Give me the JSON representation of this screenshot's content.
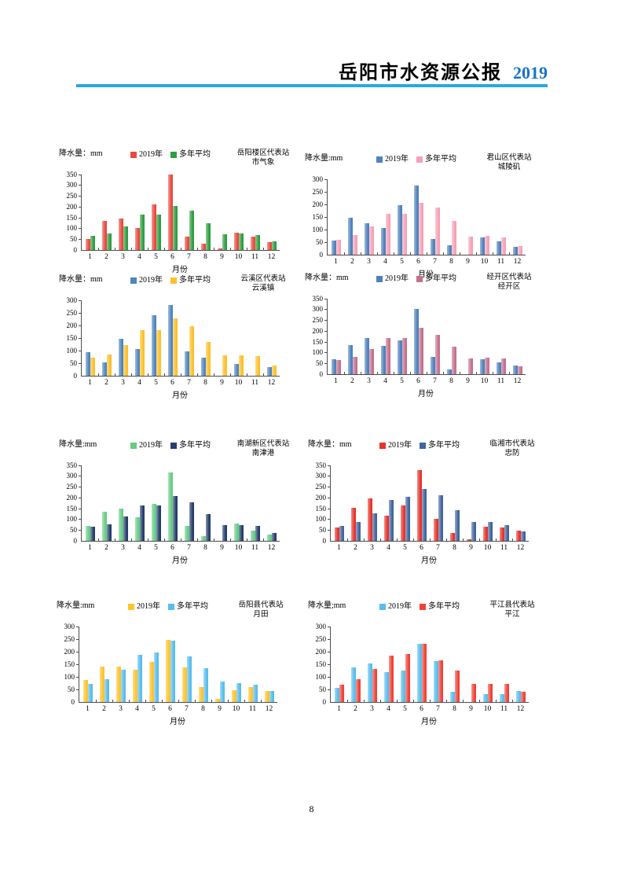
{
  "header": {
    "title": "岳阳市水资源公报",
    "year": "2019",
    "year_color": "#1573c8",
    "rule_color": "#29a7e3"
  },
  "page_number": "8",
  "chart_data": [
    {
      "type": "bar",
      "title_line1": "岳阳楼区代表站",
      "title_line2": "市气象",
      "unit_label": "降水量：mm",
      "xlabel": "月份",
      "categories": [
        "1",
        "2",
        "3",
        "4",
        "5",
        "6",
        "7",
        "8",
        "9",
        "10",
        "11",
        "12"
      ],
      "ylim": [
        0,
        350
      ],
      "ystep": 50,
      "grid": false,
      "legend_position": "top",
      "series": [
        {
          "name": "2019年",
          "color": "#e9493e",
          "values": [
            52,
            135,
            145,
            100,
            210,
            350,
            62,
            30,
            5,
            80,
            60,
            35
          ]
        },
        {
          "name": "多年平均",
          "color": "#2f9e41",
          "values": [
            63,
            77,
            110,
            165,
            165,
            205,
            180,
            123,
            72,
            75,
            70,
            40
          ]
        }
      ]
    },
    {
      "type": "bar",
      "title_line1": "君山区代表站",
      "title_line2": "城陵矶",
      "unit_label": "降水量:mm",
      "xlabel": "月份",
      "categories": [
        "1",
        "2",
        "3",
        "4",
        "5",
        "6",
        "7",
        "8",
        "9",
        "10",
        "11",
        "12"
      ],
      "ylim": [
        0,
        300
      ],
      "ystep": 50,
      "grid": false,
      "legend_position": "top",
      "series": [
        {
          "name": "2019年",
          "color": "#4f81bd",
          "values": [
            55,
            145,
            125,
            105,
            195,
            275,
            62,
            37,
            0,
            68,
            52,
            30
          ]
        },
        {
          "name": "多年平均",
          "color": "#f6a2b6",
          "values": [
            60,
            77,
            112,
            163,
            163,
            205,
            188,
            135,
            72,
            73,
            68,
            35
          ]
        }
      ]
    },
    {
      "type": "bar",
      "title_line1": "云溪区代表站",
      "title_line2": "云溪镇",
      "unit_label": "降水量：mm",
      "xlabel": "月份",
      "categories": [
        "1",
        "2",
        "3",
        "4",
        "5",
        "6",
        "7",
        "8",
        "9",
        "10",
        "11",
        "12"
      ],
      "ylim": [
        0,
        300
      ],
      "ystep": 50,
      "grid": false,
      "legend_position": "top",
      "series": [
        {
          "name": "2019年",
          "color": "#4f86be",
          "values": [
            92,
            52,
            145,
            105,
            240,
            282,
            97,
            72,
            0,
            47,
            0,
            35
          ]
        },
        {
          "name": "多年平均",
          "color": "#fdc02c",
          "values": [
            70,
            85,
            120,
            180,
            180,
            228,
            197,
            133,
            80,
            80,
            77,
            40
          ]
        }
      ]
    },
    {
      "type": "bar",
      "title_line1": "经开区代表站",
      "title_line2": "经开区",
      "unit_label": "降水量：mm",
      "xlabel": "月份",
      "categories": [
        "1",
        "2",
        "3",
        "4",
        "5",
        "6",
        "7",
        "8",
        "9",
        "10",
        "11",
        "12"
      ],
      "ylim": [
        0,
        350
      ],
      "ystep": 50,
      "grid": false,
      "legend_position": "top",
      "series": [
        {
          "name": "2019年",
          "color": "#4f81bd",
          "values": [
            68,
            133,
            168,
            132,
            155,
            302,
            78,
            20,
            0,
            68,
            55,
            40
          ]
        },
        {
          "name": "多年平均",
          "color": "#c4718c",
          "values": [
            63,
            79,
            114,
            168,
            168,
            213,
            183,
            126,
            72,
            74,
            72,
            36
          ]
        }
      ]
    },
    {
      "type": "bar",
      "title_line1": "南湖新区代表站",
      "title_line2": "南津港",
      "unit_label": "降水量:mm",
      "xlabel": "月份",
      "categories": [
        "1",
        "2",
        "3",
        "4",
        "5",
        "6",
        "7",
        "8",
        "9",
        "10",
        "11",
        "12"
      ],
      "ylim": [
        0,
        350
      ],
      "ystep": 50,
      "grid": false,
      "legend_position": "top",
      "series": [
        {
          "name": "2019年",
          "color": "#66cc85",
          "values": [
            67,
            133,
            150,
            110,
            170,
            315,
            70,
            22,
            0,
            80,
            48,
            30
          ]
        },
        {
          "name": "多年平均",
          "color": "#253e6b",
          "values": [
            63,
            77,
            112,
            163,
            165,
            207,
            178,
            123,
            72,
            73,
            70,
            35
          ]
        }
      ]
    },
    {
      "type": "bar",
      "title_line1": "临湘市代表站",
      "title_line2": "忠防",
      "unit_label": "降水量：mm",
      "xlabel": "月份",
      "categories": [
        "1",
        "2",
        "3",
        "4",
        "5",
        "6",
        "7",
        "8",
        "9",
        "10",
        "11",
        "12"
      ],
      "ylim": [
        0,
        350
      ],
      "ystep": 50,
      "grid": false,
      "legend_position": "top",
      "series": [
        {
          "name": "2019年",
          "color": "#e5342c",
          "values": [
            60,
            153,
            195,
            115,
            165,
            328,
            102,
            35,
            7,
            65,
            60,
            45
          ]
        },
        {
          "name": "多年平均",
          "color": "#41659e",
          "values": [
            67,
            88,
            127,
            190,
            203,
            240,
            210,
            140,
            85,
            88,
            73,
            42
          ]
        }
      ]
    },
    {
      "type": "bar",
      "title_line1": "岳阳县代表站",
      "title_line2": "月田",
      "unit_label": "降水量:mm",
      "xlabel": "月份",
      "categories": [
        "1",
        "2",
        "3",
        "4",
        "5",
        "6",
        "7",
        "8",
        "9",
        "10",
        "11",
        "12"
      ],
      "ylim": [
        0,
        300
      ],
      "ystep": 50,
      "grid": false,
      "legend_position": "top",
      "series": [
        {
          "name": "2019年",
          "color": "#fec32d",
          "values": [
            88,
            140,
            140,
            128,
            158,
            245,
            136,
            58,
            13,
            45,
            58,
            43
          ]
        },
        {
          "name": "多年平均",
          "color": "#58bdee",
          "values": [
            70,
            90,
            126,
            188,
            197,
            242,
            182,
            133,
            80,
            75,
            68,
            42
          ]
        }
      ]
    },
    {
      "type": "bar",
      "title_line1": "平江县代表站",
      "title_line2": "平江",
      "unit_label": "降水量;mm",
      "xlabel": "月份",
      "categories": [
        "1",
        "2",
        "3",
        "4",
        "5",
        "6",
        "7",
        "8",
        "9",
        "10",
        "11",
        "12"
      ],
      "ylim": [
        0,
        300
      ],
      "ystep": 50,
      "grid": false,
      "legend_position": "top",
      "series": [
        {
          "name": "2019年",
          "color": "#58bdee",
          "values": [
            55,
            138,
            153,
            118,
            125,
            230,
            163,
            40,
            0,
            32,
            32,
            43
          ]
        },
        {
          "name": "多年平均",
          "color": "#ef4337",
          "values": [
            68,
            90,
            131,
            184,
            190,
            232,
            164,
            123,
            72,
            70,
            70,
            41
          ]
        }
      ]
    }
  ]
}
